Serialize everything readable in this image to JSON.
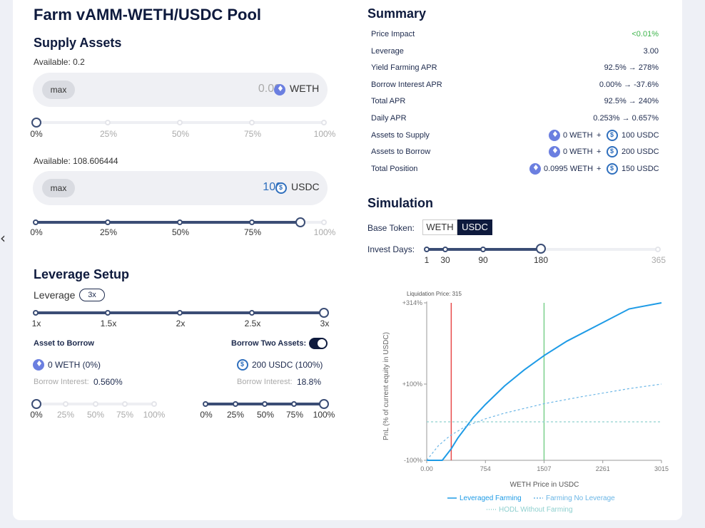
{
  "page_title": "Farm vAMM-WETH/USDC Pool",
  "supply": {
    "title": "Supply Assets",
    "weth": {
      "available": "Available: 0.2",
      "max_label": "max",
      "amount": "0.00",
      "token": "WETH",
      "progress_pct": 0
    },
    "usdc": {
      "available": "Available: 108.606444",
      "max_label": "max",
      "amount": "100",
      "token": "USDC",
      "progress_pct": 92
    },
    "ticks": [
      "0%",
      "25%",
      "50%",
      "75%",
      "100%"
    ]
  },
  "leverage": {
    "title": "Leverage Setup",
    "label": "Leverage",
    "value": "3x",
    "ticks": [
      "1x",
      "1.5x",
      "2x",
      "2.5x",
      "3x"
    ],
    "asset_to_borrow": "Asset to Borrow",
    "borrow_two": "Borrow Two Assets:",
    "weth_borrow": "0  WETH  (0%)",
    "usdc_borrow": "200  USDC  (100%)",
    "borrow_interest_label": "Borrow Interest:",
    "weth_interest": "0.560%",
    "usdc_interest": "18.8%",
    "pct_ticks": [
      "0%",
      "25%",
      "50%",
      "75%",
      "100%"
    ]
  },
  "summary": {
    "title": "Summary",
    "rows": [
      {
        "label": "Price Impact",
        "value": "<0.01%"
      },
      {
        "label": "Leverage",
        "value": "3.00"
      },
      {
        "label": "Yield Farming APR",
        "value": "92.5% → 278%"
      },
      {
        "label": "Borrow Interest APR",
        "value": "0.00% → -37.6%"
      },
      {
        "label": "Total APR",
        "value": "92.5% → 240%"
      },
      {
        "label": "Daily APR",
        "value": "0.253% → 0.657%"
      }
    ],
    "assets_to_supply": {
      "label": "Assets to Supply",
      "weth": "0  WETH",
      "usdc": "100  USDC"
    },
    "assets_to_borrow": {
      "label": "Assets to Borrow",
      "weth": "0  WETH",
      "usdc": "200  USDC"
    },
    "total_position": {
      "label": "Total Position",
      "weth": "0.0995  WETH",
      "usdc": "150  USDC"
    },
    "plus": "+",
    "price_impact_color": "#3cb34a"
  },
  "simulation": {
    "title": "Simulation",
    "base_token_label": "Base Token:",
    "base_tokens": [
      "WETH",
      "USDC"
    ],
    "selected_base": "USDC",
    "invest_days_label": "Invest Days:",
    "invest_ticks": [
      "1",
      "30",
      "90",
      "180",
      "365"
    ],
    "invest_days_value": 180
  },
  "chart_data": {
    "type": "line",
    "xlabel": "WETH Price in USDC",
    "ylabel": "PnL (% of current equity in USDC)",
    "x_ticks": [
      "0.00",
      "754",
      "1507",
      "2261",
      "3015"
    ],
    "y_ticks": [
      "+314%",
      "+100%",
      "-100%"
    ],
    "xlim": [
      0,
      3015
    ],
    "ylim": [
      -100,
      314
    ],
    "liquidation_label": "Liquidation Price: 315",
    "liquidation_price": 315,
    "current_price": 1507,
    "series": [
      {
        "name": "Leveraged Farming",
        "x": [
          0,
          100,
          200,
          315,
          400,
          600,
          754,
          1000,
          1250,
          1507,
          1800,
          2261,
          2600,
          3015
        ],
        "y": [
          -100,
          -100,
          -100,
          -70,
          -42,
          12,
          46,
          95,
          137,
          175,
          213,
          262,
          298,
          314
        ]
      },
      {
        "name": "Farming No Leverage",
        "x": [
          0,
          150,
          300,
          500,
          754,
          1000,
          1507,
          2000,
          2261,
          2600,
          3015
        ],
        "y": [
          -100,
          -62,
          -36,
          -12,
          8,
          23,
          48,
          67,
          76,
          88,
          100
        ]
      },
      {
        "name": "HODL Without Farming",
        "x": [
          0,
          3015
        ],
        "y": [
          0,
          0
        ]
      }
    ],
    "colors": {
      "leveraged": "#1e9be6",
      "no_leverage": "#6bb6e6",
      "hodl": "#8fd0cf",
      "liquidation": "#e84b4b",
      "current": "#7bd08c"
    }
  }
}
